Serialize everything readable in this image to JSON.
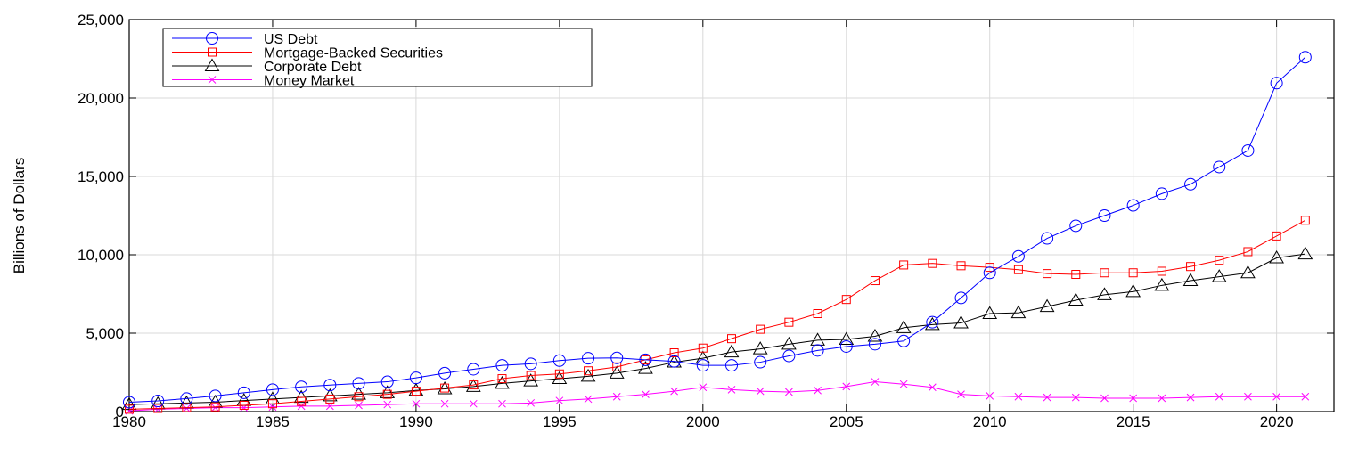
{
  "chart_data": {
    "type": "line",
    "title": "",
    "xlabel": "",
    "ylabel": "Billions of Dollars",
    "xlim": [
      1980,
      2022
    ],
    "ylim": [
      0,
      25000
    ],
    "grid": true,
    "legend_position": "top-left",
    "x_ticks": [
      1980,
      1985,
      1990,
      1995,
      2000,
      2005,
      2010,
      2015,
      2020
    ],
    "x_tick_labels": [
      "1980",
      "1985",
      "1990",
      "1995",
      "2000",
      "2005",
      "2010",
      "2015",
      "2020"
    ],
    "y_ticks": [
      0,
      5000,
      10000,
      15000,
      20000,
      25000
    ],
    "y_tick_labels": [
      "0",
      "5,000",
      "10,000",
      "15,000",
      "20,000",
      "25,000"
    ],
    "x": [
      1980,
      1981,
      1982,
      1983,
      1984,
      1985,
      1986,
      1987,
      1988,
      1989,
      1990,
      1991,
      1992,
      1993,
      1994,
      1995,
      1996,
      1997,
      1998,
      1999,
      2000,
      2001,
      2002,
      2003,
      2004,
      2005,
      2006,
      2007,
      2008,
      2009,
      2010,
      2011,
      2012,
      2013,
      2014,
      2015,
      2016,
      2017,
      2018,
      2019,
      2020,
      2021
    ],
    "series": [
      {
        "name": "US Debt",
        "color": "#0000ff",
        "marker": "circle",
        "values": [
          600,
          680,
          830,
          1000,
          1200,
          1400,
          1580,
          1690,
          1800,
          1900,
          2150,
          2450,
          2700,
          2950,
          3050,
          3250,
          3400,
          3420,
          3300,
          3200,
          2950,
          2950,
          3150,
          3550,
          3900,
          4150,
          4300,
          4500,
          5700,
          7250,
          8850,
          9900,
          11050,
          11850,
          12500,
          13150,
          13900,
          14500,
          15600,
          16650,
          20950,
          22600
        ]
      },
      {
        "name": "Mortgage-Backed Securities",
        "color": "#ff0000",
        "marker": "square",
        "values": [
          150,
          200,
          250,
          300,
          400,
          500,
          650,
          800,
          950,
          1100,
          1300,
          1500,
          1700,
          2100,
          2300,
          2400,
          2600,
          2850,
          3300,
          3750,
          4050,
          4650,
          5250,
          5700,
          6250,
          7150,
          8350,
          9350,
          9450,
          9300,
          9200,
          9050,
          8800,
          8750,
          8850,
          8850,
          8950,
          9250,
          9650,
          10200,
          11200,
          12200
        ]
      },
      {
        "name": "Corporate Debt",
        "color": "#000000",
        "marker": "triangle",
        "values": [
          450,
          500,
          550,
          600,
          700,
          800,
          900,
          1000,
          1100,
          1200,
          1350,
          1450,
          1600,
          1800,
          1950,
          2100,
          2250,
          2450,
          2750,
          3150,
          3400,
          3800,
          4000,
          4300,
          4550,
          4600,
          4800,
          5350,
          5550,
          5650,
          6250,
          6300,
          6700,
          7100,
          7450,
          7650,
          8050,
          8350,
          8600,
          8850,
          9800,
          10050
        ]
      },
      {
        "name": "Money Market",
        "color": "#ff00ff",
        "marker": "x",
        "values": [
          50,
          150,
          200,
          250,
          250,
          300,
          350,
          350,
          400,
          450,
          500,
          500,
          500,
          500,
          550,
          700,
          800,
          950,
          1100,
          1300,
          1550,
          1400,
          1300,
          1250,
          1350,
          1600,
          1900,
          1750,
          1550,
          1100,
          1000,
          950,
          900,
          900,
          850,
          850,
          850,
          900,
          950,
          950,
          950,
          950
        ]
      }
    ]
  }
}
